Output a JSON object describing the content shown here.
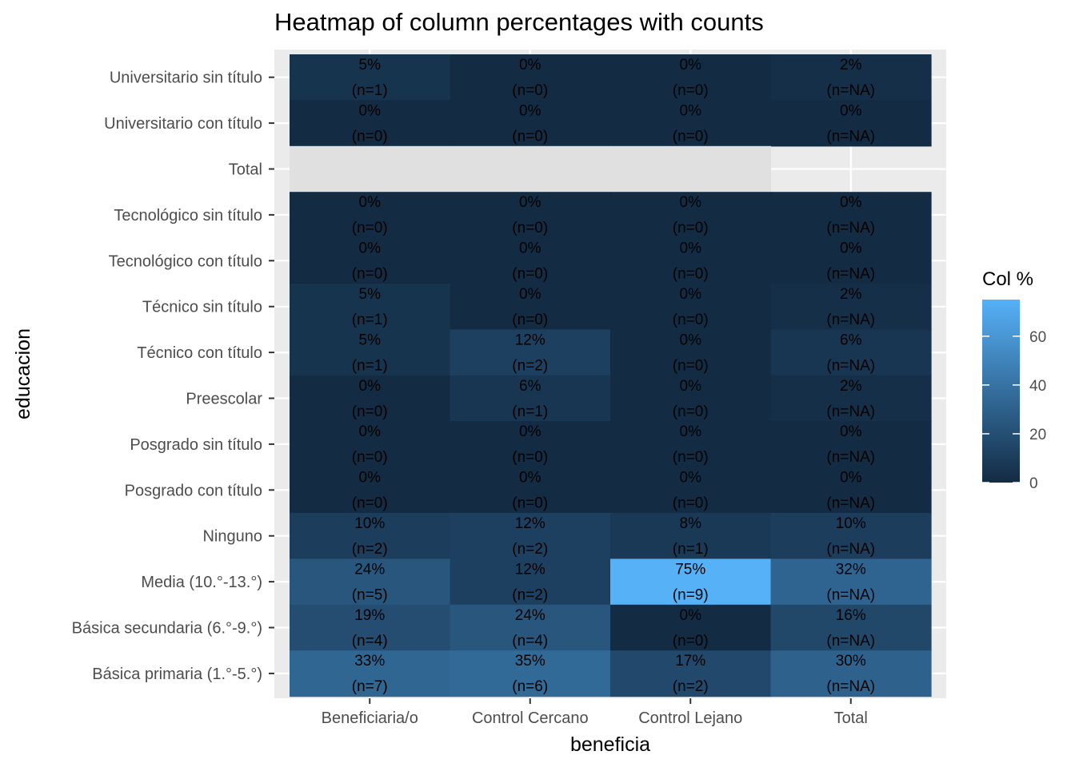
{
  "chart_data": {
    "type": "heatmap",
    "title": "Heatmap of column percentages with counts",
    "xlabel": "beneficia",
    "ylabel": "educacion",
    "x_categories": [
      "Beneficiaria/o",
      "Control Cercano",
      "Control Lejano",
      "Total"
    ],
    "y_categories": [
      "Universitario sin título",
      "Universitario con título",
      "Total",
      "Tecnológico sin título",
      "Tecnológico con título",
      "Técnico sin título",
      "Técnico con título",
      "Preescolar",
      "Posgrado sin título",
      "Posgrado con título",
      "Ninguno",
      "Media (10.°-13.°)",
      "Básica secundaria (6.°-9.°)",
      "Básica primaria (1.°-5.°)"
    ],
    "cells": [
      {
        "x": "Beneficiaria/o",
        "y": "Universitario sin título",
        "value": 5,
        "pct_label": "5%",
        "count_label": "(n=1)"
      },
      {
        "x": "Control Cercano",
        "y": "Universitario sin título",
        "value": 0,
        "pct_label": "0%",
        "count_label": "(n=0)"
      },
      {
        "x": "Control Lejano",
        "y": "Universitario sin título",
        "value": 0,
        "pct_label": "0%",
        "count_label": "(n=0)"
      },
      {
        "x": "Total",
        "y": "Universitario sin título",
        "value": 2,
        "pct_label": "2%",
        "count_label": "(n=NA)"
      },
      {
        "x": "Beneficiaria/o",
        "y": "Universitario con título",
        "value": 0,
        "pct_label": "0%",
        "count_label": "(n=0)"
      },
      {
        "x": "Control Cercano",
        "y": "Universitario con título",
        "value": 0,
        "pct_label": "0%",
        "count_label": "(n=0)"
      },
      {
        "x": "Control Lejano",
        "y": "Universitario con título",
        "value": 0,
        "pct_label": "0%",
        "count_label": "(n=0)"
      },
      {
        "x": "Total",
        "y": "Universitario con título",
        "value": 0,
        "pct_label": "0%",
        "count_label": "(n=NA)"
      },
      {
        "x": "Beneficiaria/o",
        "y": "Total",
        "value": null,
        "pct_label": "",
        "count_label": ""
      },
      {
        "x": "Control Cercano",
        "y": "Total",
        "value": null,
        "pct_label": "",
        "count_label": ""
      },
      {
        "x": "Control Lejano",
        "y": "Total",
        "value": null,
        "pct_label": "",
        "count_label": ""
      },
      {
        "x": "Beneficiaria/o",
        "y": "Tecnológico sin título",
        "value": 0,
        "pct_label": "0%",
        "count_label": "(n=0)"
      },
      {
        "x": "Control Cercano",
        "y": "Tecnológico sin título",
        "value": 0,
        "pct_label": "0%",
        "count_label": "(n=0)"
      },
      {
        "x": "Control Lejano",
        "y": "Tecnológico sin título",
        "value": 0,
        "pct_label": "0%",
        "count_label": "(n=0)"
      },
      {
        "x": "Total",
        "y": "Tecnológico sin título",
        "value": 0,
        "pct_label": "0%",
        "count_label": "(n=NA)"
      },
      {
        "x": "Beneficiaria/o",
        "y": "Tecnológico con título",
        "value": 0,
        "pct_label": "0%",
        "count_label": "(n=0)"
      },
      {
        "x": "Control Cercano",
        "y": "Tecnológico con título",
        "value": 0,
        "pct_label": "0%",
        "count_label": "(n=0)"
      },
      {
        "x": "Control Lejano",
        "y": "Tecnológico con título",
        "value": 0,
        "pct_label": "0%",
        "count_label": "(n=0)"
      },
      {
        "x": "Total",
        "y": "Tecnológico con título",
        "value": 0,
        "pct_label": "0%",
        "count_label": "(n=NA)"
      },
      {
        "x": "Beneficiaria/o",
        "y": "Técnico sin título",
        "value": 5,
        "pct_label": "5%",
        "count_label": "(n=1)"
      },
      {
        "x": "Control Cercano",
        "y": "Técnico sin título",
        "value": 0,
        "pct_label": "0%",
        "count_label": "(n=0)"
      },
      {
        "x": "Control Lejano",
        "y": "Técnico sin título",
        "value": 0,
        "pct_label": "0%",
        "count_label": "(n=0)"
      },
      {
        "x": "Total",
        "y": "Técnico sin título",
        "value": 2,
        "pct_label": "2%",
        "count_label": "(n=NA)"
      },
      {
        "x": "Beneficiaria/o",
        "y": "Técnico con título",
        "value": 5,
        "pct_label": "5%",
        "count_label": "(n=1)"
      },
      {
        "x": "Control Cercano",
        "y": "Técnico con título",
        "value": 12,
        "pct_label": "12%",
        "count_label": "(n=2)"
      },
      {
        "x": "Control Lejano",
        "y": "Técnico con título",
        "value": 0,
        "pct_label": "0%",
        "count_label": "(n=0)"
      },
      {
        "x": "Total",
        "y": "Técnico con título",
        "value": 6,
        "pct_label": "6%",
        "count_label": "(n=NA)"
      },
      {
        "x": "Beneficiaria/o",
        "y": "Preescolar",
        "value": 0,
        "pct_label": "0%",
        "count_label": "(n=0)"
      },
      {
        "x": "Control Cercano",
        "y": "Preescolar",
        "value": 6,
        "pct_label": "6%",
        "count_label": "(n=1)"
      },
      {
        "x": "Control Lejano",
        "y": "Preescolar",
        "value": 0,
        "pct_label": "0%",
        "count_label": "(n=0)"
      },
      {
        "x": "Total",
        "y": "Preescolar",
        "value": 2,
        "pct_label": "2%",
        "count_label": "(n=NA)"
      },
      {
        "x": "Beneficiaria/o",
        "y": "Posgrado sin título",
        "value": 0,
        "pct_label": "0%",
        "count_label": "(n=0)"
      },
      {
        "x": "Control Cercano",
        "y": "Posgrado sin título",
        "value": 0,
        "pct_label": "0%",
        "count_label": "(n=0)"
      },
      {
        "x": "Control Lejano",
        "y": "Posgrado sin título",
        "value": 0,
        "pct_label": "0%",
        "count_label": "(n=0)"
      },
      {
        "x": "Total",
        "y": "Posgrado sin título",
        "value": 0,
        "pct_label": "0%",
        "count_label": "(n=NA)"
      },
      {
        "x": "Beneficiaria/o",
        "y": "Posgrado con título",
        "value": 0,
        "pct_label": "0%",
        "count_label": "(n=0)"
      },
      {
        "x": "Control Cercano",
        "y": "Posgrado con título",
        "value": 0,
        "pct_label": "0%",
        "count_label": "(n=0)"
      },
      {
        "x": "Control Lejano",
        "y": "Posgrado con título",
        "value": 0,
        "pct_label": "0%",
        "count_label": "(n=0)"
      },
      {
        "x": "Total",
        "y": "Posgrado con título",
        "value": 0,
        "pct_label": "0%",
        "count_label": "(n=NA)"
      },
      {
        "x": "Beneficiaria/o",
        "y": "Ninguno",
        "value": 10,
        "pct_label": "10%",
        "count_label": "(n=2)"
      },
      {
        "x": "Control Cercano",
        "y": "Ninguno",
        "value": 12,
        "pct_label": "12%",
        "count_label": "(n=2)"
      },
      {
        "x": "Control Lejano",
        "y": "Ninguno",
        "value": 8,
        "pct_label": "8%",
        "count_label": "(n=1)"
      },
      {
        "x": "Total",
        "y": "Ninguno",
        "value": 10,
        "pct_label": "10%",
        "count_label": "(n=NA)"
      },
      {
        "x": "Beneficiaria/o",
        "y": "Media (10.°-13.°)",
        "value": 24,
        "pct_label": "24%",
        "count_label": "(n=5)"
      },
      {
        "x": "Control Cercano",
        "y": "Media (10.°-13.°)",
        "value": 12,
        "pct_label": "12%",
        "count_label": "(n=2)"
      },
      {
        "x": "Control Lejano",
        "y": "Media (10.°-13.°)",
        "value": 75,
        "pct_label": "75%",
        "count_label": "(n=9)"
      },
      {
        "x": "Total",
        "y": "Media (10.°-13.°)",
        "value": 32,
        "pct_label": "32%",
        "count_label": "(n=NA)"
      },
      {
        "x": "Beneficiaria/o",
        "y": "Básica secundaria (6.°-9.°)",
        "value": 19,
        "pct_label": "19%",
        "count_label": "(n=4)"
      },
      {
        "x": "Control Cercano",
        "y": "Básica secundaria (6.°-9.°)",
        "value": 24,
        "pct_label": "24%",
        "count_label": "(n=4)"
      },
      {
        "x": "Control Lejano",
        "y": "Básica secundaria (6.°-9.°)",
        "value": 0,
        "pct_label": "0%",
        "count_label": "(n=0)"
      },
      {
        "x": "Total",
        "y": "Básica secundaria (6.°-9.°)",
        "value": 16,
        "pct_label": "16%",
        "count_label": "(n=NA)"
      },
      {
        "x": "Beneficiaria/o",
        "y": "Básica primaria (1.°-5.°)",
        "value": 33,
        "pct_label": "33%",
        "count_label": "(n=7)"
      },
      {
        "x": "Control Cercano",
        "y": "Básica primaria (1.°-5.°)",
        "value": 35,
        "pct_label": "35%",
        "count_label": "(n=6)"
      },
      {
        "x": "Control Lejano",
        "y": "Básica primaria (1.°-5.°)",
        "value": 17,
        "pct_label": "17%",
        "count_label": "(n=2)"
      },
      {
        "x": "Total",
        "y": "Básica primaria (1.°-5.°)",
        "value": 30,
        "pct_label": "30%",
        "count_label": "(n=NA)"
      }
    ],
    "legend": {
      "title": "Col %",
      "placement": "right",
      "range": [
        0,
        75
      ],
      "ticks": [
        0,
        20,
        40,
        60
      ],
      "tick_labels": [
        "0",
        "20",
        "40",
        "60"
      ],
      "low_color": "#132B43",
      "high_color": "#56B1F7",
      "na_color": "#E0E0E0"
    },
    "colors": {
      "panel_background": "#EBEBEB",
      "grid": "#FFFFFF",
      "axis_text": "#4D4D4D",
      "cell_text": "#000000"
    }
  }
}
